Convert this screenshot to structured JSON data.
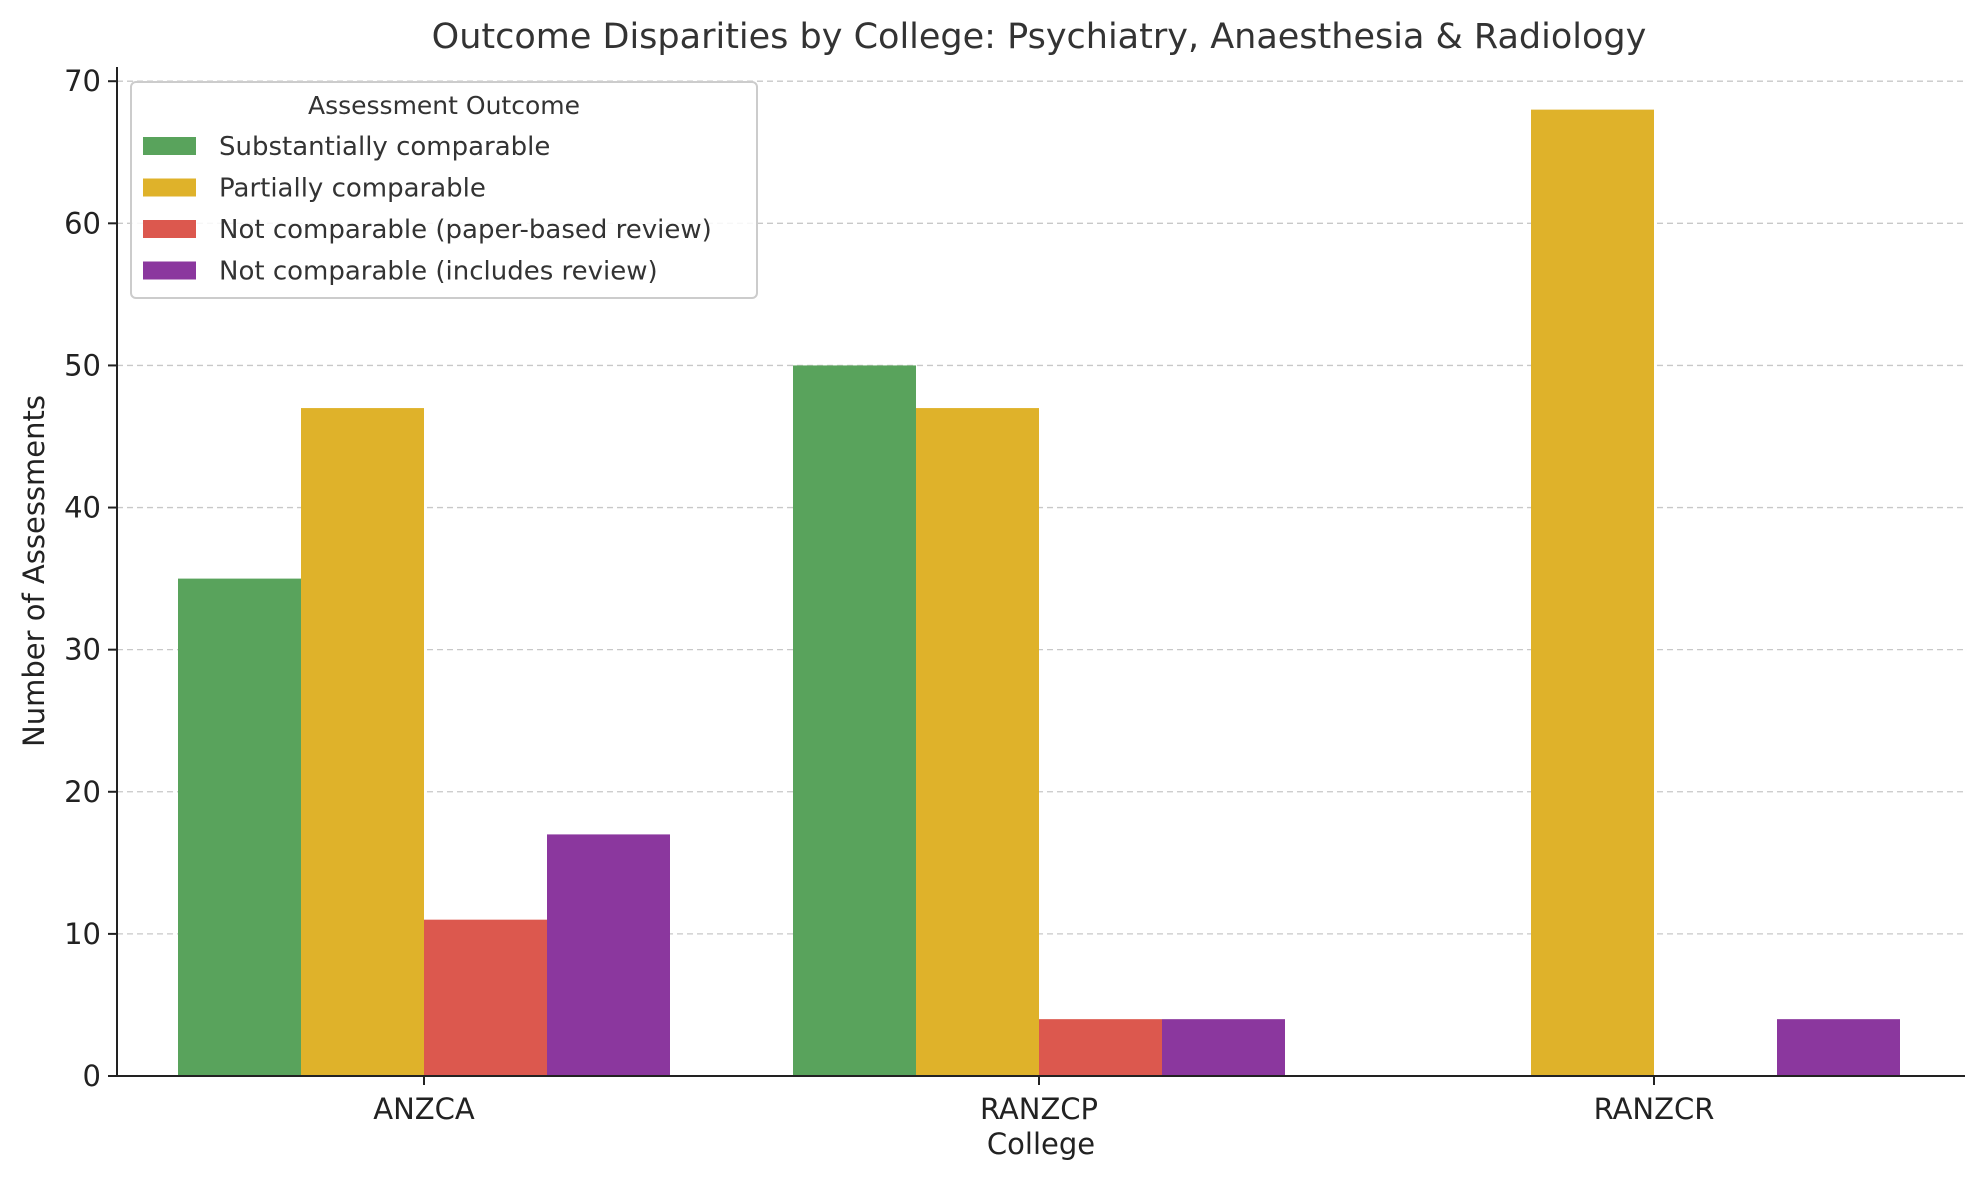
{
  "chart_data": {
    "type": "bar",
    "title": "Outcome Disparities by College: Psychiatry, Anaesthesia & Radiology",
    "xlabel": "College",
    "ylabel": "Number of Assessments",
    "categories": [
      "ANZCA",
      "RANZCP",
      "RANZCR"
    ],
    "ylim": [
      0,
      71
    ],
    "yticks": [
      0,
      10,
      20,
      30,
      40,
      50,
      60,
      70
    ],
    "grid": "y-dashed",
    "legend": {
      "title": "Assessment Outcome",
      "placement": "top-left"
    },
    "series": [
      {
        "name": "Substantially comparable",
        "color": "#59a35c",
        "values": [
          35,
          50,
          0
        ]
      },
      {
        "name": "Partially comparable",
        "color": "#dfb22a",
        "values": [
          47,
          47,
          68
        ]
      },
      {
        "name": "Not comparable (paper-based review)",
        "color": "#dc584e",
        "values": [
          11,
          4,
          0
        ]
      },
      {
        "name": "Not comparable (includes review)",
        "color": "#8b379e",
        "values": [
          17,
          4,
          4
        ]
      }
    ]
  }
}
